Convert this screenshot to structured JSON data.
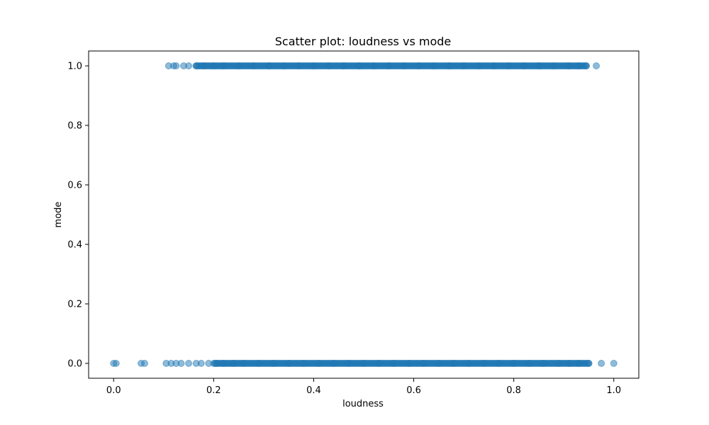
{
  "chart_data": {
    "type": "scatter",
    "title": "Scatter plot: loudness vs mode",
    "xlabel": "loudness",
    "ylabel": "mode",
    "xlim": [
      -0.05,
      1.05
    ],
    "ylim": [
      -0.05,
      1.05
    ],
    "xticks": [
      "0.0",
      "0.2",
      "0.4",
      "0.6",
      "0.8",
      "1.0"
    ],
    "yticks": [
      "0.0",
      "0.2",
      "0.4",
      "0.6",
      "0.8",
      "1.0"
    ],
    "grid": false,
    "marker_color": "#1f77b4",
    "marker_alpha": 0.5,
    "series": [
      {
        "points": [
          [
            0.11,
            1
          ],
          [
            0.12,
            1
          ],
          [
            0.125,
            1
          ],
          [
            0.14,
            1
          ],
          [
            0.15,
            1
          ],
          [
            0.165,
            1
          ],
          [
            0.18,
            1
          ],
          [
            0.2,
            1
          ],
          [
            0.22,
            1
          ],
          [
            0.25,
            1
          ],
          [
            0.28,
            1
          ],
          [
            0.31,
            1
          ],
          [
            0.34,
            1
          ],
          [
            0.37,
            1
          ],
          [
            0.4,
            1
          ],
          [
            0.43,
            1
          ],
          [
            0.46,
            1
          ],
          [
            0.49,
            1
          ],
          [
            0.52,
            1
          ],
          [
            0.55,
            1
          ],
          [
            0.58,
            1
          ],
          [
            0.61,
            1
          ],
          [
            0.64,
            1
          ],
          [
            0.67,
            1
          ],
          [
            0.7,
            1
          ],
          [
            0.73,
            1
          ],
          [
            0.76,
            1
          ],
          [
            0.79,
            1
          ],
          [
            0.82,
            1
          ],
          [
            0.85,
            1
          ],
          [
            0.88,
            1
          ],
          [
            0.91,
            1
          ],
          [
            0.93,
            1
          ],
          [
            0.945,
            1
          ],
          [
            0.965,
            1
          ],
          [
            0.0,
            0
          ],
          [
            0.005,
            0
          ],
          [
            0.055,
            0
          ],
          [
            0.062,
            0
          ],
          [
            0.105,
            0
          ],
          [
            0.115,
            0
          ],
          [
            0.125,
            0
          ],
          [
            0.135,
            0
          ],
          [
            0.15,
            0
          ],
          [
            0.165,
            0
          ],
          [
            0.175,
            0
          ],
          [
            0.19,
            0
          ],
          [
            0.205,
            0
          ],
          [
            0.22,
            0
          ],
          [
            0.24,
            0
          ],
          [
            0.26,
            0
          ],
          [
            0.29,
            0
          ],
          [
            0.32,
            0
          ],
          [
            0.35,
            0
          ],
          [
            0.38,
            0
          ],
          [
            0.41,
            0
          ],
          [
            0.44,
            0
          ],
          [
            0.47,
            0
          ],
          [
            0.5,
            0
          ],
          [
            0.53,
            0
          ],
          [
            0.56,
            0
          ],
          [
            0.59,
            0
          ],
          [
            0.62,
            0
          ],
          [
            0.65,
            0
          ],
          [
            0.68,
            0
          ],
          [
            0.71,
            0
          ],
          [
            0.74,
            0
          ],
          [
            0.77,
            0
          ],
          [
            0.8,
            0
          ],
          [
            0.83,
            0
          ],
          [
            0.86,
            0
          ],
          [
            0.89,
            0
          ],
          [
            0.91,
            0
          ],
          [
            0.93,
            0
          ],
          [
            0.95,
            0
          ],
          [
            0.975,
            0
          ],
          [
            1.0,
            0
          ]
        ],
        "dense_ranges": [
          {
            "y": 1,
            "from": 0.165,
            "to": 0.945
          },
          {
            "y": 0,
            "from": 0.2,
            "to": 0.95
          }
        ]
      }
    ]
  }
}
